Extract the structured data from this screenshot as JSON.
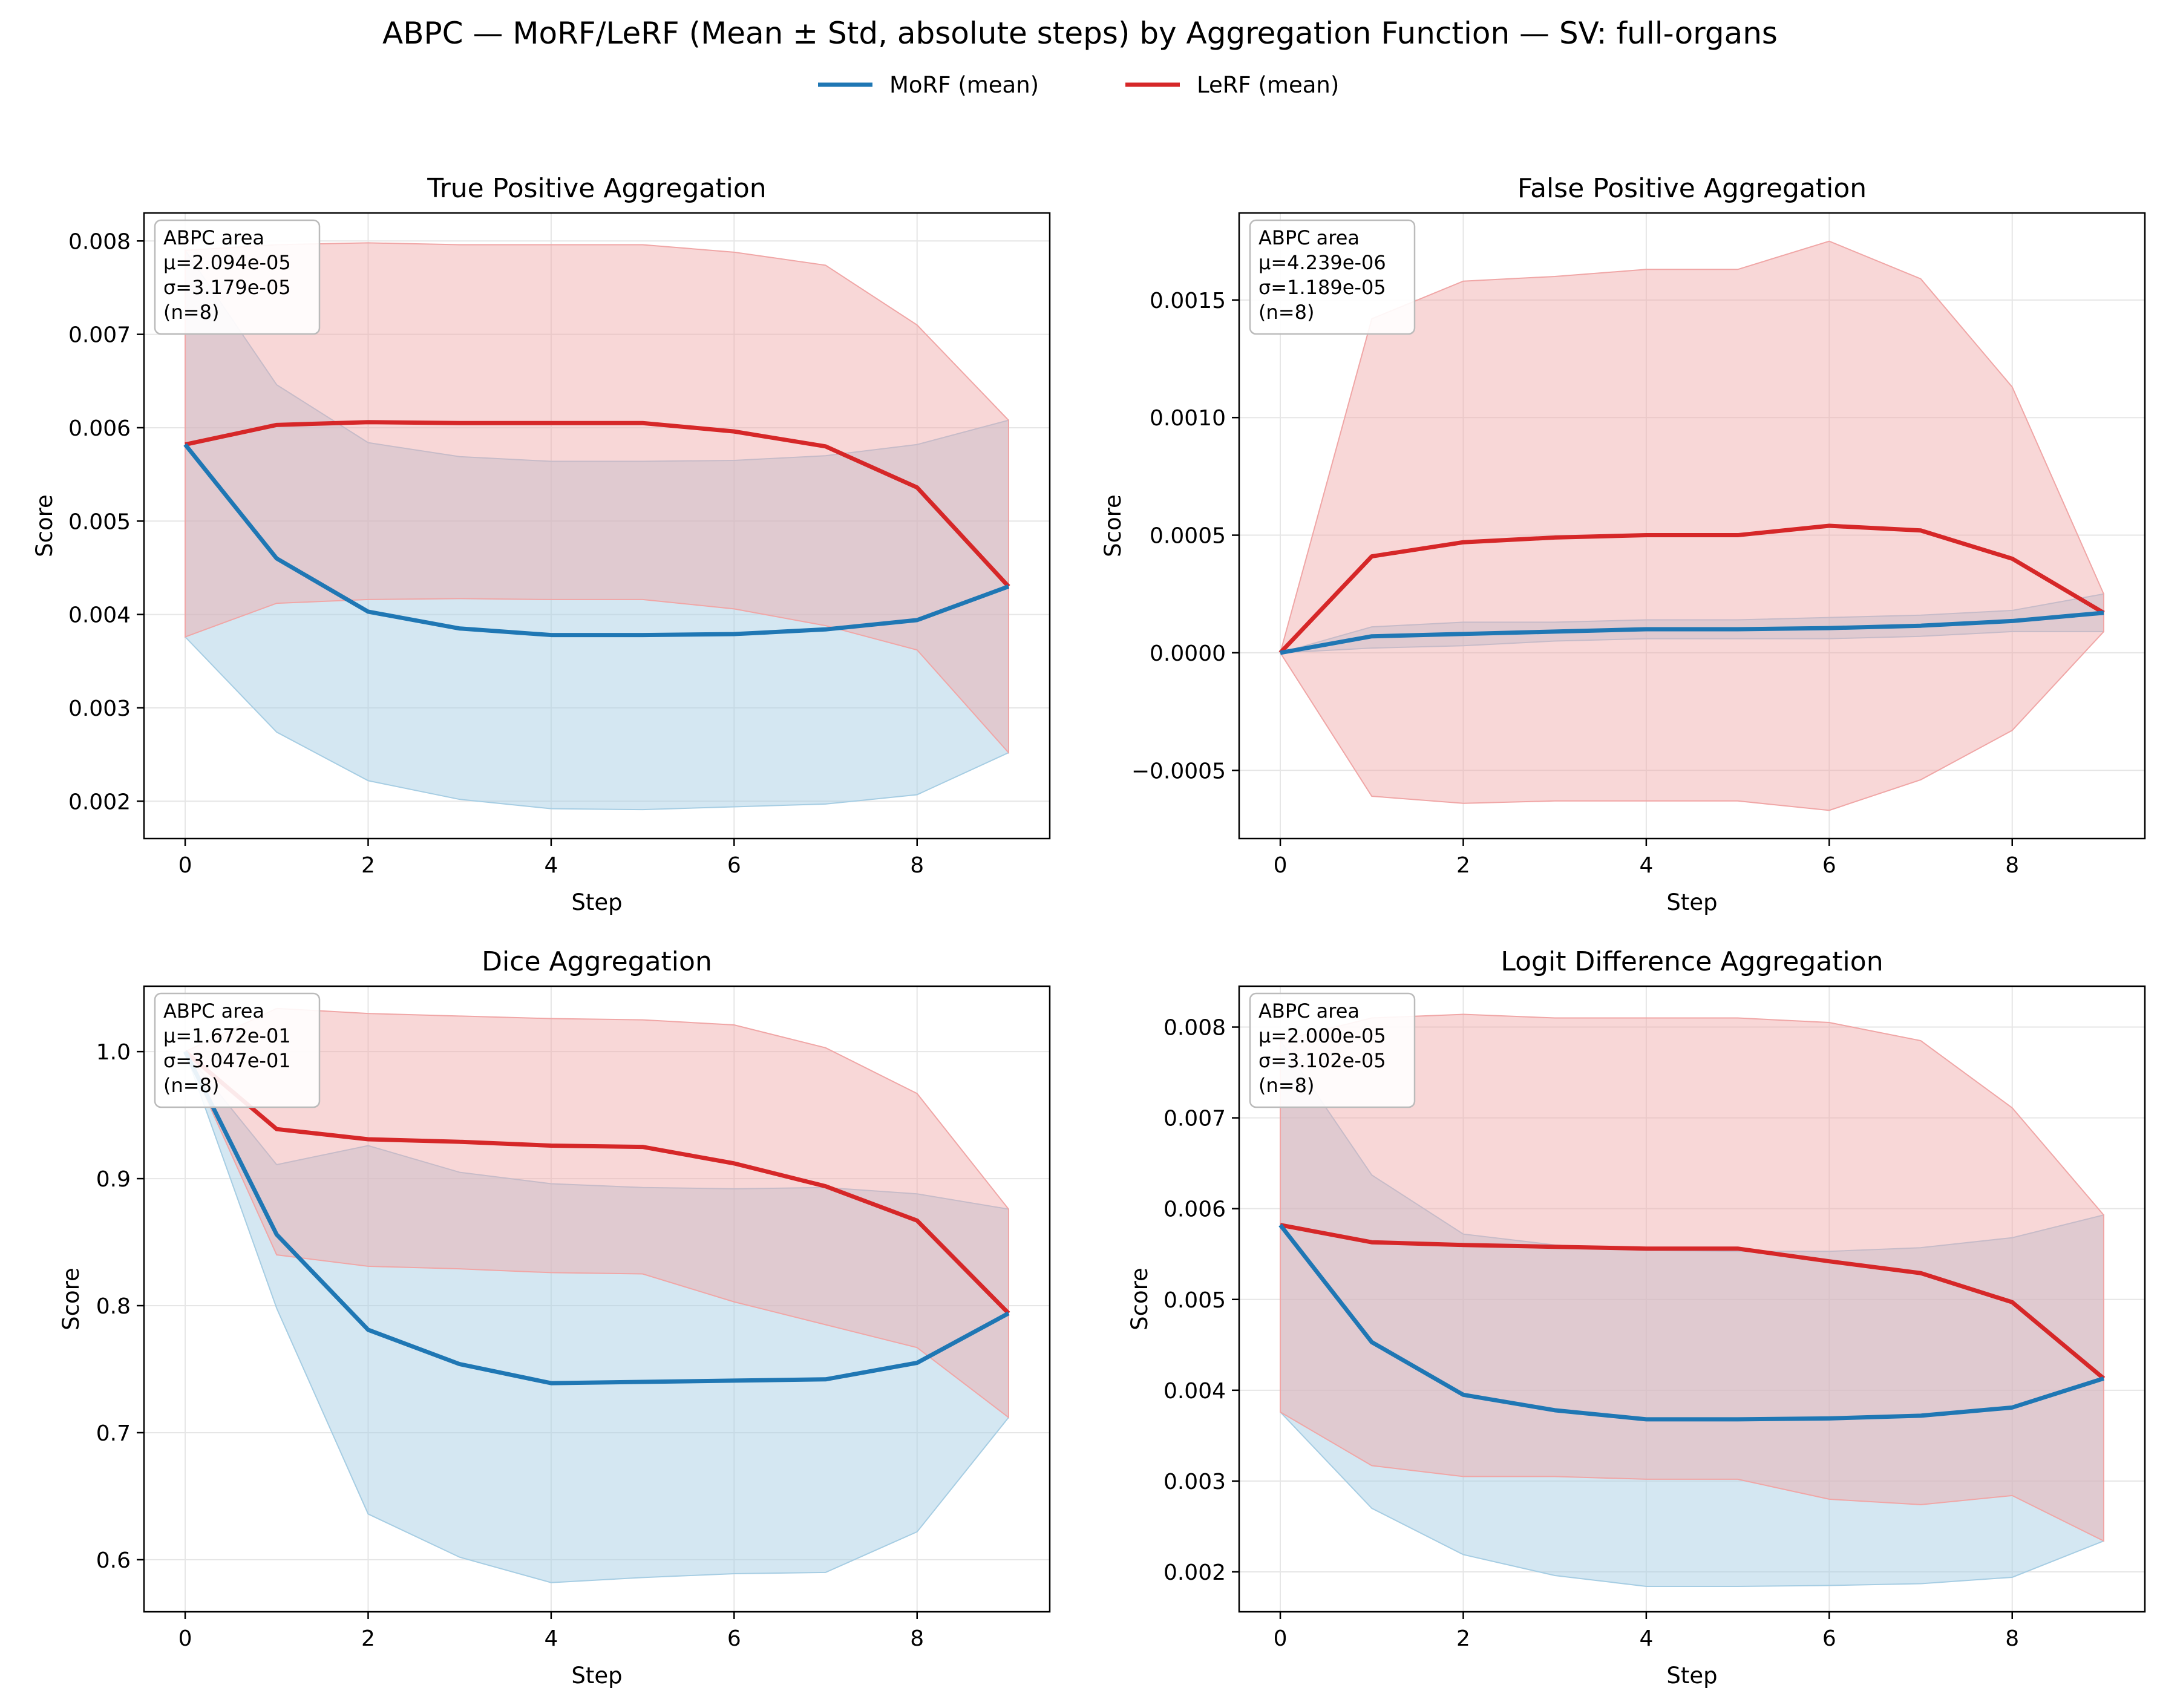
{
  "figure": {
    "title": "ABPC — MoRF/LeRF (Mean ± Std, absolute steps) by Aggregation Function — SV: full-organs",
    "legend": [
      {
        "label": "MoRF (mean)",
        "color": "#1f77b4"
      },
      {
        "label": "LeRF (mean)",
        "color": "#d62728"
      }
    ],
    "colors": {
      "morf": "#1f77b4",
      "lerf": "#d62728",
      "morf_band": "#a6cde3",
      "lerf_band": "#f0a6a6",
      "grid": "#e6e6e6"
    }
  },
  "chart_data": [
    {
      "type": "line",
      "title": "True Positive Aggregation",
      "xlabel": "Step",
      "ylabel": "Score",
      "xlim": [
        -0.45,
        9.45
      ],
      "ylim": [
        0.0016,
        0.0083
      ],
      "xticks": [
        0,
        2,
        4,
        6,
        8
      ],
      "yticks": [
        0.002,
        0.003,
        0.004,
        0.005,
        0.006,
        0.007,
        0.008
      ],
      "ytick_labels": [
        "0.002",
        "0.003",
        "0.004",
        "0.005",
        "0.006",
        "0.007",
        "0.008"
      ],
      "grid": true,
      "x": [
        0,
        1,
        2,
        3,
        4,
        5,
        6,
        7,
        8,
        9
      ],
      "series": [
        {
          "name": "MoRF (mean)",
          "mean": [
            0.00582,
            0.0046,
            0.00403,
            0.00385,
            0.00378,
            0.00378,
            0.00379,
            0.00384,
            0.00394,
            0.0043
          ],
          "lower": [
            0.00376,
            0.00274,
            0.00222,
            0.00202,
            0.00192,
            0.00191,
            0.00194,
            0.00197,
            0.00207,
            0.00252
          ],
          "upper": [
            0.0079,
            0.00646,
            0.00584,
            0.00569,
            0.00564,
            0.00564,
            0.00565,
            0.0057,
            0.00582,
            0.00608
          ]
        },
        {
          "name": "LeRF (mean)",
          "mean": [
            0.00582,
            0.00603,
            0.00606,
            0.00605,
            0.00605,
            0.00605,
            0.00596,
            0.0058,
            0.00536,
            0.0043
          ],
          "lower": [
            0.00376,
            0.00412,
            0.00416,
            0.00417,
            0.00416,
            0.00416,
            0.00406,
            0.00388,
            0.00362,
            0.00252
          ],
          "upper": [
            0.0079,
            0.00796,
            0.00798,
            0.00796,
            0.00796,
            0.00796,
            0.00788,
            0.00774,
            0.0071,
            0.00608
          ]
        }
      ],
      "annotation": [
        "ABPC area",
        "μ=2.094e-05",
        "σ=3.179e-05",
        "(n=8)"
      ]
    },
    {
      "type": "line",
      "title": "False Positive Aggregation",
      "xlabel": "Step",
      "ylabel": "Score",
      "xlim": [
        -0.45,
        9.45
      ],
      "ylim": [
        -0.00079,
        0.00187
      ],
      "xticks": [
        0,
        2,
        4,
        6,
        8
      ],
      "yticks": [
        -0.0005,
        0.0,
        0.0005,
        0.001,
        0.0015
      ],
      "ytick_labels": [
        "−0.0005",
        "0.0000",
        "0.0005",
        "0.0010",
        "0.0015"
      ],
      "grid": true,
      "x": [
        0,
        1,
        2,
        3,
        4,
        5,
        6,
        7,
        8,
        9
      ],
      "series": [
        {
          "name": "MoRF (mean)",
          "mean": [
            0.0,
            7e-05,
            8e-05,
            9e-05,
            0.0001,
            0.0001,
            0.000105,
            0.000115,
            0.000135,
            0.00017
          ],
          "lower": [
            0.0,
            2e-05,
            3e-05,
            5e-05,
            6e-05,
            6e-05,
            6e-05,
            7e-05,
            9e-05,
            9e-05
          ],
          "upper": [
            0.0,
            0.00011,
            0.00013,
            0.00013,
            0.00014,
            0.00014,
            0.00015,
            0.00016,
            0.00018,
            0.00025
          ]
        },
        {
          "name": "LeRF (mean)",
          "mean": [
            0.0,
            0.00041,
            0.00047,
            0.00049,
            0.0005,
            0.0005,
            0.00054,
            0.00052,
            0.0004,
            0.00017
          ],
          "lower": [
            0.0,
            -0.00061,
            -0.00064,
            -0.00063,
            -0.00063,
            -0.00063,
            -0.00067,
            -0.00054,
            -0.00033,
            9e-05
          ],
          "upper": [
            0.0,
            0.00142,
            0.00158,
            0.0016,
            0.00163,
            0.00163,
            0.00175,
            0.00159,
            0.00113,
            0.00025
          ]
        }
      ],
      "annotation": [
        "ABPC area",
        "μ=4.239e-06",
        "σ=1.189e-05",
        "(n=8)"
      ]
    },
    {
      "type": "line",
      "title": "Dice Aggregation",
      "xlabel": "Step",
      "ylabel": "Score",
      "xlim": [
        -0.45,
        9.45
      ],
      "ylim": [
        0.559,
        1.0515
      ],
      "xticks": [
        0,
        2,
        4,
        6,
        8
      ],
      "yticks": [
        0.6,
        0.7,
        0.8,
        0.9,
        1.0
      ],
      "ytick_labels": [
        "0.6",
        "0.7",
        "0.8",
        "0.9",
        "1.0"
      ],
      "grid": true,
      "x": [
        0,
        1,
        2,
        3,
        4,
        5,
        6,
        7,
        8,
        9
      ],
      "series": [
        {
          "name": "MoRF (mean)",
          "mean": [
            1.0,
            0.856,
            0.781,
            0.754,
            0.739,
            0.74,
            0.741,
            0.742,
            0.755,
            0.794
          ],
          "lower": [
            1.0,
            0.798,
            0.636,
            0.602,
            0.582,
            0.586,
            0.589,
            0.59,
            0.622,
            0.712
          ],
          "upper": [
            1.0,
            0.911,
            0.926,
            0.905,
            0.896,
            0.893,
            0.892,
            0.893,
            0.888,
            0.876
          ]
        },
        {
          "name": "LeRF (mean)",
          "mean": [
            1.0,
            0.939,
            0.931,
            0.929,
            0.926,
            0.925,
            0.912,
            0.894,
            0.867,
            0.794
          ],
          "lower": [
            1.0,
            0.84,
            0.831,
            0.829,
            0.826,
            0.825,
            0.803,
            0.785,
            0.767,
            0.712
          ],
          "upper": [
            1.0,
            1.034,
            1.03,
            1.028,
            1.026,
            1.025,
            1.021,
            1.003,
            0.967,
            0.876
          ]
        }
      ],
      "annotation": [
        "ABPC area",
        "μ=1.672e-01",
        "σ=3.047e-01",
        "(n=8)"
      ]
    },
    {
      "type": "line",
      "title": "Logit Difference Aggregation",
      "xlabel": "Step",
      "ylabel": "Score",
      "xlim": [
        -0.45,
        9.45
      ],
      "ylim": [
        0.00156,
        0.00845
      ],
      "xticks": [
        0,
        2,
        4,
        6,
        8
      ],
      "yticks": [
        0.002,
        0.003,
        0.004,
        0.005,
        0.006,
        0.007,
        0.008
      ],
      "ytick_labels": [
        "0.002",
        "0.003",
        "0.004",
        "0.005",
        "0.006",
        "0.007",
        "0.008"
      ],
      "grid": true,
      "x": [
        0,
        1,
        2,
        3,
        4,
        5,
        6,
        7,
        8,
        9
      ],
      "series": [
        {
          "name": "MoRF (mean)",
          "mean": [
            0.00582,
            0.00453,
            0.00395,
            0.00378,
            0.00368,
            0.00368,
            0.00369,
            0.00372,
            0.00381,
            0.00413
          ],
          "lower": [
            0.00376,
            0.0027,
            0.00219,
            0.00196,
            0.00184,
            0.00184,
            0.00185,
            0.00187,
            0.00194,
            0.00234
          ],
          "upper": [
            0.00785,
            0.00637,
            0.00572,
            0.0056,
            0.00554,
            0.00553,
            0.00553,
            0.00557,
            0.00568,
            0.00593
          ]
        },
        {
          "name": "LeRF (mean)",
          "mean": [
            0.00582,
            0.00563,
            0.0056,
            0.00558,
            0.00556,
            0.00556,
            0.00542,
            0.00529,
            0.00497,
            0.00413
          ],
          "lower": [
            0.00376,
            0.00317,
            0.00305,
            0.00305,
            0.00302,
            0.00302,
            0.0028,
            0.00274,
            0.00284,
            0.00234
          ],
          "upper": [
            0.00785,
            0.0081,
            0.00814,
            0.0081,
            0.0081,
            0.0081,
            0.00805,
            0.00785,
            0.00711,
            0.00593
          ]
        }
      ],
      "annotation": [
        "ABPC area",
        "μ=2.000e-05",
        "σ=3.102e-05",
        "(n=8)"
      ]
    }
  ]
}
